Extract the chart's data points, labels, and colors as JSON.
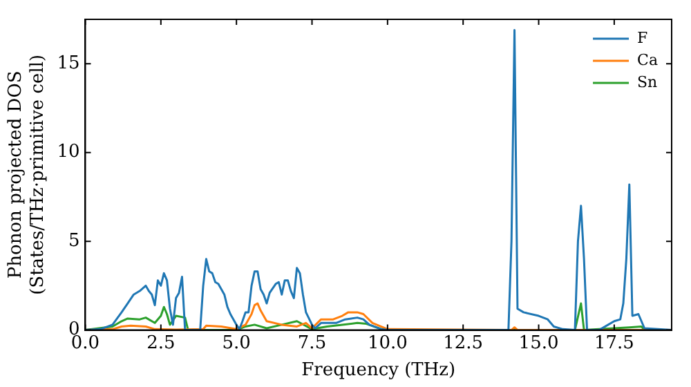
{
  "chart_data": {
    "type": "line",
    "xlabel": "Frequency (THz)",
    "ylabel": "Phonon projected DOS\n(States/THz·primitive cell)",
    "xlim": [
      0,
      19.4
    ],
    "ylim": [
      0,
      17.5
    ],
    "xticks": [
      {
        "value": 0,
        "label": "0.0"
      },
      {
        "value": 2.5,
        "label": "2.5"
      },
      {
        "value": 5,
        "label": "5.0"
      },
      {
        "value": 7.5,
        "label": "7.5"
      },
      {
        "value": 10,
        "label": "10.0"
      },
      {
        "value": 12.5,
        "label": "12.5"
      },
      {
        "value": 15,
        "label": "15.0"
      },
      {
        "value": 17.5,
        "label": "17.5"
      }
    ],
    "yticks": [
      0,
      5,
      10,
      15
    ],
    "grid": false,
    "legend": "top right",
    "marker": "none",
    "line_style": "solid",
    "series": [
      {
        "name": "F",
        "color": "#1f77b4",
        "x": [
          0,
          0.5,
          0.9,
          1.2,
          1.4,
          1.6,
          1.8,
          2.0,
          2.1,
          2.2,
          2.3,
          2.4,
          2.5,
          2.6,
          2.7,
          2.8,
          2.9,
          3.0,
          3.1,
          3.2,
          3.3,
          3.8,
          3.9,
          4.0,
          4.1,
          4.2,
          4.3,
          4.4,
          4.5,
          4.6,
          4.7,
          4.8,
          5.0,
          5.1,
          5.2,
          5.3,
          5.4,
          5.5,
          5.6,
          5.7,
          5.8,
          5.9,
          6.0,
          6.1,
          6.3,
          6.4,
          6.5,
          6.6,
          6.7,
          6.8,
          6.9,
          7.0,
          7.1,
          7.2,
          7.3,
          7.5,
          7.6,
          7.8,
          8.0,
          8.3,
          8.6,
          9.0,
          9.2,
          9.4,
          9.8,
          10.0,
          14.0,
          14.1,
          14.2,
          14.3,
          14.5,
          15.0,
          15.3,
          15.5,
          15.8,
          16.2,
          16.3,
          16.4,
          16.5,
          16.6,
          17.0,
          17.3,
          17.5,
          17.7,
          17.8,
          17.9,
          18.0,
          18.1,
          18.3,
          18.5,
          19.4
        ],
        "values": [
          0,
          0.05,
          0.3,
          1.0,
          1.5,
          2.0,
          2.2,
          2.5,
          2.2,
          2.0,
          1.4,
          2.8,
          2.5,
          3.2,
          2.8,
          1.2,
          0.3,
          1.8,
          2.1,
          3.0,
          0,
          0,
          2.5,
          4.0,
          3.3,
          3.2,
          2.7,
          2.6,
          2.3,
          2.0,
          1.3,
          0.9,
          0.3,
          0.05,
          0.5,
          1.0,
          1.0,
          2.5,
          3.3,
          3.3,
          2.3,
          2.0,
          1.5,
          2.1,
          2.6,
          2.7,
          2.0,
          2.8,
          2.8,
          2.2,
          1.8,
          3.5,
          3.2,
          2.0,
          1.0,
          0.3,
          0.1,
          0.4,
          0.4,
          0.4,
          0.6,
          0.7,
          0.6,
          0.3,
          0.05,
          0,
          0,
          5,
          16.9,
          1.2,
          1.0,
          0.8,
          0.6,
          0.2,
          0.05,
          0,
          5,
          7.0,
          4,
          0,
          0,
          0.3,
          0.5,
          0.6,
          1.5,
          4,
          8.2,
          0.8,
          0.9,
          0.1,
          0
        ]
      },
      {
        "name": "Ca",
        "color": "#ff7f0e",
        "x": [
          0,
          0.9,
          1.2,
          1.5,
          2.0,
          2.3,
          3.0,
          3.9,
          4.0,
          4.5,
          5.0,
          5.3,
          5.5,
          5.6,
          5.7,
          5.8,
          6.0,
          6.5,
          7.0,
          7.3,
          7.5,
          7.8,
          8.2,
          8.5,
          8.7,
          9.0,
          9.2,
          9.5,
          10.0,
          14.1,
          14.2,
          14.3,
          19.4
        ],
        "values": [
          0,
          0.05,
          0.2,
          0.25,
          0.2,
          0.05,
          0.02,
          0.05,
          0.25,
          0.2,
          0.05,
          0.3,
          0.9,
          1.4,
          1.5,
          1.1,
          0.5,
          0.3,
          0.2,
          0.4,
          0.1,
          0.6,
          0.6,
          0.8,
          1.0,
          1.0,
          0.9,
          0.4,
          0.05,
          0,
          0.15,
          0,
          0
        ]
      },
      {
        "name": "Sn",
        "color": "#2ca02c",
        "x": [
          0,
          0.9,
          1.2,
          1.4,
          1.8,
          2.0,
          2.3,
          2.5,
          2.6,
          2.7,
          2.8,
          3.0,
          3.3,
          3.4,
          5.0,
          5.3,
          5.6,
          6.0,
          6.5,
          7.0,
          7.5,
          8.0,
          8.5,
          9.0,
          9.3,
          9.8,
          10,
          16.2,
          16.4,
          16.5,
          17.5,
          18.0,
          18.4,
          18.5,
          19.4
        ],
        "values": [
          0,
          0.2,
          0.5,
          0.65,
          0.6,
          0.7,
          0.4,
          0.8,
          1.3,
          0.9,
          0.3,
          0.8,
          0.7,
          0,
          0,
          0.2,
          0.3,
          0.1,
          0.3,
          0.5,
          0.05,
          0.2,
          0.3,
          0.4,
          0.35,
          0.05,
          0,
          0,
          1.5,
          0,
          0.1,
          0.15,
          0.2,
          0,
          0
        ]
      }
    ]
  }
}
